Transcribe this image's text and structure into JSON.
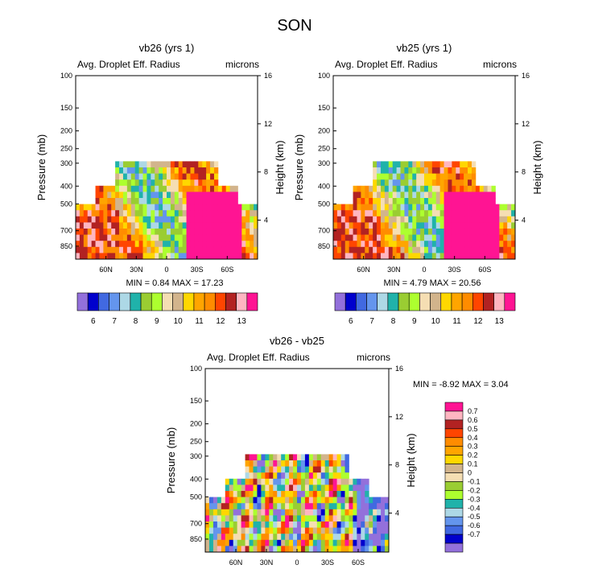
{
  "figure_title": "SON",
  "chart_data": [
    {
      "type": "heatmap",
      "title": "vb26 (yrs 1)",
      "subtitle_left": "Avg. Droplet Eff. Radius",
      "subtitle_right": "microns",
      "ylabel": "Pressure (mb)",
      "ylabel_right": "Height (km)",
      "x_ticks": [
        "60N",
        "30N",
        "0",
        "30S",
        "60S"
      ],
      "x_tick_values": [
        60,
        30,
        0,
        -30,
        -60
      ],
      "xlim": [
        90,
        -90
      ],
      "y_ticks": [
        "100",
        "150",
        "200",
        "250",
        "300",
        "400",
        "500",
        "700",
        "850"
      ],
      "y_tick_values": [
        100,
        150,
        200,
        250,
        300,
        400,
        500,
        700,
        850
      ],
      "ylim": [
        100,
        1000
      ],
      "y_right_ticks": [
        "16",
        "12",
        "8",
        "4"
      ],
      "y_right_values": [
        16,
        12,
        8,
        4
      ],
      "min_max_text": "MIN =   0.84  MAX =  17.23",
      "colorbar_labels": [
        "6",
        "7",
        "8",
        "9",
        "10",
        "11",
        "12",
        "13"
      ],
      "colorbar_colors": [
        "#9370db",
        "#0000cd",
        "#4169e1",
        "#6495ed",
        "#add8e6",
        "#20b2aa",
        "#9acd32",
        "#adff2f",
        "#f5deb3",
        "#d2b48c",
        "#ffd700",
        "#ffa500",
        "#ff8c00",
        "#ff4500",
        "#b22222",
        "#ffb6c1",
        "#ff1493"
      ],
      "field_seed": 3
    },
    {
      "type": "heatmap",
      "title": "vb25 (yrs 1)",
      "subtitle_left": "Avg. Droplet Eff. Radius",
      "subtitle_right": "microns",
      "ylabel": "Pressure (mb)",
      "ylabel_right": "Height (km)",
      "x_ticks": [
        "60N",
        "30N",
        "0",
        "30S",
        "60S"
      ],
      "x_tick_values": [
        60,
        30,
        0,
        -30,
        -60
      ],
      "xlim": [
        90,
        -90
      ],
      "y_ticks": [
        "100",
        "150",
        "200",
        "250",
        "300",
        "400",
        "500",
        "700",
        "850"
      ],
      "y_tick_values": [
        100,
        150,
        200,
        250,
        300,
        400,
        500,
        700,
        850
      ],
      "ylim": [
        100,
        1000
      ],
      "y_right_ticks": [
        "16",
        "12",
        "8",
        "4"
      ],
      "y_right_values": [
        16,
        12,
        8,
        4
      ],
      "min_max_text": "MIN =   4.79  MAX =  20.56",
      "colorbar_labels": [
        "6",
        "7",
        "8",
        "9",
        "10",
        "11",
        "12",
        "13"
      ],
      "colorbar_colors": [
        "#9370db",
        "#0000cd",
        "#4169e1",
        "#6495ed",
        "#add8e6",
        "#20b2aa",
        "#9acd32",
        "#adff2f",
        "#f5deb3",
        "#d2b48c",
        "#ffd700",
        "#ffa500",
        "#ff8c00",
        "#ff4500",
        "#b22222",
        "#ffb6c1",
        "#ff1493"
      ],
      "field_seed": 11
    },
    {
      "type": "heatmap",
      "title": "vb26 - vb25",
      "subtitle_left": "Avg. Droplet Eff. Radius",
      "subtitle_right": "microns",
      "ylabel": "Pressure (mb)",
      "ylabel_right": "Height (km)",
      "x_ticks": [
        "60N",
        "30N",
        "0",
        "30S",
        "60S"
      ],
      "x_tick_values": [
        60,
        30,
        0,
        -30,
        -60
      ],
      "xlim": [
        90,
        -90
      ],
      "y_ticks": [
        "100",
        "150",
        "200",
        "250",
        "300",
        "400",
        "500",
        "700",
        "850"
      ],
      "y_tick_values": [
        100,
        150,
        200,
        250,
        300,
        400,
        500,
        700,
        850
      ],
      "ylim": [
        100,
        1000
      ],
      "y_right_ticks": [
        "16",
        "12",
        "8",
        "4"
      ],
      "y_right_values": [
        16,
        12,
        8,
        4
      ],
      "min_max_text": "MIN =  -8.92  MAX =   3.04",
      "colorbar_labels": [
        "0.7",
        "0.6",
        "0.5",
        "0.4",
        "0.3",
        "0.2",
        "0.1",
        "0",
        "-0.1",
        "-0.2",
        "-0.3",
        "-0.4",
        "-0.5",
        "-0.6",
        "-0.7"
      ],
      "colorbar_colors": [
        "#ff1493",
        "#ffb6c1",
        "#b22222",
        "#ff4500",
        "#ff8c00",
        "#ffa500",
        "#ffd700",
        "#d2b48c",
        "#f5deb3",
        "#9acd32",
        "#adff2f",
        "#20b2aa",
        "#add8e6",
        "#6495ed",
        "#4169e1",
        "#0000cd",
        "#9370db"
      ],
      "field_seed": 29
    }
  ]
}
